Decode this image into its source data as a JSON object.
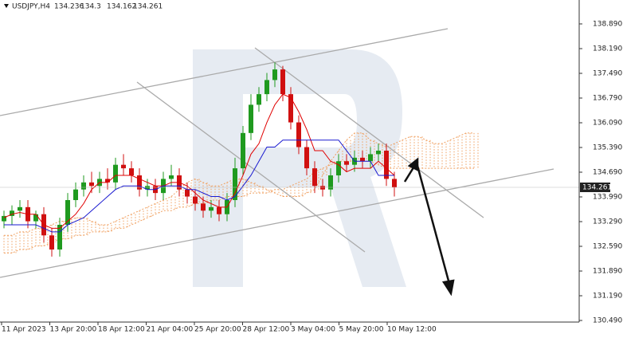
{
  "chart_data": {
    "type": "candlestick",
    "symbol": "USDJPY,H4",
    "ohlc": [
      134.236,
      134.3,
      134.162,
      134.261
    ],
    "current_price": 134.261,
    "ylim": [
      130.445,
      139.567
    ],
    "yticks": [
      {
        "value": 138.89,
        "label": "138.890"
      },
      {
        "value": 138.19,
        "label": "138.190"
      },
      {
        "value": 137.49,
        "label": "137.490"
      },
      {
        "value": 136.79,
        "label": "136.790"
      },
      {
        "value": 136.09,
        "label": "136.090"
      },
      {
        "value": 135.39,
        "label": "135.390"
      },
      {
        "value": 134.69,
        "label": "134.690"
      },
      {
        "value": 133.99,
        "label": "133.990"
      },
      {
        "value": 133.29,
        "label": "133.290"
      },
      {
        "value": 132.59,
        "label": "132.590"
      },
      {
        "value": 131.89,
        "label": "131.890"
      },
      {
        "value": 131.19,
        "label": "131.190"
      },
      {
        "value": 130.49,
        "label": "130.490"
      }
    ],
    "x_labels": [
      "11 Apr 2023",
      "13 Apr 20:00",
      "18 Apr 12:00",
      "21 Apr 04:00",
      "25 Apr 20:00",
      "28 Apr 12:00",
      "3 May 04:00",
      "5 May 20:00",
      "10 May 12:00"
    ],
    "up_color": "#1f9a1f",
    "down_color": "#d01010",
    "candles": {
      "open": [
        133.3,
        133.45,
        133.6,
        133.7,
        133.3,
        133.5,
        132.9,
        132.5,
        133.2,
        133.9,
        134.2,
        134.4,
        134.3,
        134.5,
        134.4,
        134.9,
        134.8,
        134.6,
        134.2,
        134.3,
        134.1,
        134.5,
        134.6,
        134.2,
        134.0,
        133.8,
        133.6,
        133.7,
        133.5,
        133.9,
        134.8,
        135.8,
        136.6,
        136.9,
        137.3,
        137.6,
        136.9,
        136.1,
        135.4,
        134.8,
        134.3,
        134.2,
        134.6,
        135.0,
        134.9,
        135.1,
        135.0,
        135.2,
        135.3,
        134.5
      ],
      "high": [
        133.6,
        133.75,
        133.9,
        133.9,
        133.6,
        133.7,
        133.1,
        133.4,
        134.1,
        134.4,
        134.6,
        134.7,
        134.7,
        134.8,
        135.1,
        135.2,
        135.0,
        134.8,
        134.5,
        134.5,
        134.7,
        134.9,
        134.8,
        134.4,
        134.2,
        134.0,
        133.9,
        133.9,
        134.1,
        135.1,
        136.0,
        136.9,
        137.1,
        137.5,
        137.8,
        137.7,
        137.1,
        136.3,
        135.6,
        135.0,
        134.5,
        134.8,
        135.2,
        135.2,
        135.3,
        135.3,
        135.4,
        135.5,
        135.5,
        134.7
      ],
      "low": [
        133.1,
        133.2,
        133.4,
        133.1,
        133.1,
        132.7,
        132.3,
        132.3,
        133.0,
        133.7,
        134.0,
        134.1,
        134.1,
        134.2,
        134.2,
        134.6,
        134.4,
        134.0,
        134.0,
        133.9,
        133.9,
        134.3,
        134.0,
        133.8,
        133.6,
        133.4,
        133.4,
        133.3,
        133.3,
        133.7,
        134.6,
        135.6,
        136.4,
        136.7,
        137.1,
        136.7,
        135.9,
        135.2,
        134.6,
        134.1,
        134.0,
        134.0,
        134.4,
        134.7,
        134.7,
        134.8,
        134.8,
        135.0,
        134.3,
        134.0
      ],
      "close": [
        133.45,
        133.6,
        133.7,
        133.3,
        133.5,
        132.9,
        132.5,
        133.2,
        133.9,
        134.2,
        134.4,
        134.3,
        134.5,
        134.4,
        134.9,
        134.8,
        134.6,
        134.2,
        134.3,
        134.1,
        134.5,
        134.6,
        134.2,
        134.0,
        133.8,
        133.6,
        133.7,
        133.5,
        133.9,
        134.8,
        135.8,
        136.6,
        136.9,
        137.3,
        137.6,
        136.9,
        136.1,
        135.4,
        134.8,
        134.3,
        134.2,
        134.6,
        135.0,
        134.9,
        135.1,
        135.0,
        135.2,
        135.3,
        134.5,
        134.26
      ]
    },
    "series": [
      {
        "color": "#e00000",
        "values": [
          133.4,
          133.5,
          133.55,
          133.5,
          133.5,
          133.2,
          133.1,
          133.1,
          133.3,
          133.5,
          133.8,
          134.2,
          134.4,
          134.4,
          134.6,
          134.6,
          134.6,
          134.5,
          134.4,
          134.3,
          134.3,
          134.4,
          134.4,
          134.3,
          134.1,
          133.9,
          133.8,
          133.7,
          133.7,
          134.1,
          134.6,
          135.2,
          135.5,
          136.1,
          136.6,
          136.9,
          136.8,
          136.4,
          135.9,
          135.3,
          135.3,
          135.0,
          134.9,
          134.7,
          134.8,
          134.8,
          134.8,
          135.0,
          134.8,
          134.6
        ]
      },
      {
        "color": "#1a1ad0",
        "values": [
          133.2,
          133.2,
          133.2,
          133.2,
          133.2,
          133.1,
          133.0,
          133.0,
          133.2,
          133.3,
          133.4,
          133.6,
          133.8,
          134.0,
          134.2,
          134.3,
          134.3,
          134.3,
          134.2,
          134.2,
          134.3,
          134.3,
          134.3,
          134.2,
          134.2,
          134.1,
          134.0,
          134.0,
          133.9,
          134.0,
          134.3,
          134.6,
          135.0,
          135.4,
          135.4,
          135.6,
          135.6,
          135.6,
          135.6,
          135.6,
          135.6,
          135.6,
          135.6,
          135.3,
          135.0,
          135.0,
          135.0,
          134.6,
          134.6,
          134.6
        ]
      }
    ],
    "cloud": {
      "color": "#f0a060",
      "span_a": [
        132.9,
        132.9,
        133.0,
        133.0,
        133.1,
        133.1,
        133.2,
        133.3,
        133.3,
        133.4,
        133.4,
        133.3,
        133.2,
        133.2,
        133.3,
        133.4,
        133.5,
        133.6,
        133.7,
        133.8,
        133.9,
        134.0,
        134.2,
        134.4,
        134.5,
        134.4,
        134.3,
        134.3,
        134.4,
        134.5,
        134.5,
        134.4,
        134.3,
        134.2,
        134.1,
        134.0,
        134.0,
        134.0,
        134.1,
        134.2,
        134.6,
        135.0,
        135.3,
        135.6,
        135.8,
        135.8,
        135.6,
        135.5,
        135.4,
        135.5,
        135.6,
        135.7,
        135.7,
        135.6,
        135.5,
        135.5,
        135.6,
        135.7,
        135.8,
        135.8
      ],
      "span_b": [
        132.4,
        132.4,
        132.5,
        132.5,
        132.6,
        132.6,
        132.7,
        132.8,
        132.8,
        132.9,
        132.9,
        133.0,
        133.0,
        133.0,
        133.1,
        133.1,
        133.2,
        133.3,
        133.4,
        133.5,
        133.6,
        133.6,
        133.7,
        133.7,
        133.8,
        133.8,
        133.9,
        133.9,
        134.0,
        134.0,
        134.0,
        134.1,
        134.1,
        134.1,
        134.2,
        134.2,
        134.3,
        134.4,
        134.5,
        134.7,
        134.8,
        134.9,
        135.0,
        135.0,
        135.0,
        135.0,
        135.0,
        134.9,
        134.8,
        134.8,
        134.8,
        134.8,
        134.8,
        134.8,
        134.8,
        134.8,
        134.8,
        134.8,
        134.8,
        134.8
      ]
    }
  }
}
